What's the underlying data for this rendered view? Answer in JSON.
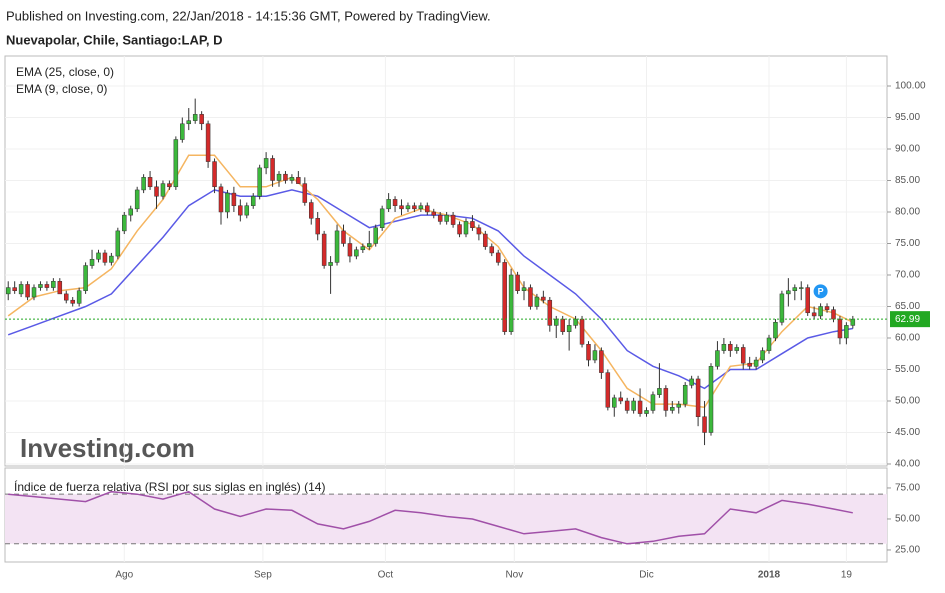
{
  "header": {
    "published": "Published on Investing.com, 22/Jan/2018 - 14:15:36 GMT, Powered by TradingView.",
    "symbol": "Nuevapolar, Chile, Santiago:LAP, D",
    "watermark": "Investing.com"
  },
  "chart_data": [
    {
      "type": "candlestick",
      "up_color": "#3cb83c",
      "down_color": "#d42a2a",
      "xlim": [
        -0.5,
        136.3
      ],
      "ylim": [
        39.68,
        104.76
      ],
      "xticks": [
        {
          "value": 18,
          "label": "Ago"
        },
        {
          "value": 39.5,
          "label": "Sep"
        },
        {
          "value": 58.5,
          "label": "Oct"
        },
        {
          "value": 78.5,
          "label": "Nov"
        },
        {
          "value": 99,
          "label": "Dic"
        },
        {
          "value": 118,
          "label": "2018"
        },
        {
          "value": 130,
          "label": "19"
        }
      ],
      "yticks": [
        {
          "value": 100,
          "label": "100.00"
        },
        {
          "value": 95,
          "label": "95.00"
        },
        {
          "value": 90,
          "label": "90.00"
        },
        {
          "value": 85,
          "label": "85.00"
        },
        {
          "value": 80,
          "label": "80.00"
        },
        {
          "value": 75,
          "label": "75.00"
        },
        {
          "value": 70,
          "label": "70.00"
        },
        {
          "value": 65,
          "label": "65.00"
        },
        {
          "value": 60,
          "label": "60.00"
        },
        {
          "value": 55,
          "label": "55.00"
        },
        {
          "value": 50,
          "label": "50.00"
        },
        {
          "value": 45,
          "label": "45.00"
        },
        {
          "value": 40,
          "label": "40.00"
        }
      ],
      "grid": true,
      "last_price": 62.99,
      "last_price_color": "#22a822",
      "marker": "P",
      "candles": [
        [
          67,
          69,
          66,
          68
        ],
        [
          68,
          69,
          67,
          67.5
        ],
        [
          67,
          69,
          66.5,
          68.5
        ],
        [
          68.5,
          69,
          66,
          66.5
        ],
        [
          66.5,
          68.5,
          66,
          68
        ],
        [
          68,
          69,
          67.5,
          68.5
        ],
        [
          68.5,
          69,
          67.5,
          68
        ],
        [
          68,
          69.5,
          67.5,
          69
        ],
        [
          69,
          69.5,
          67,
          67
        ],
        [
          67,
          67.5,
          65.5,
          66
        ],
        [
          66,
          66.5,
          65,
          65.5
        ],
        [
          65.5,
          68,
          65,
          67.5
        ],
        [
          67.5,
          72,
          67,
          71.5
        ],
        [
          71.5,
          74,
          71,
          72.5
        ],
        [
          72.5,
          74,
          72,
          73.5
        ],
        [
          73.5,
          74,
          71.5,
          72
        ],
        [
          72,
          73.5,
          71.5,
          73
        ],
        [
          73,
          77.5,
          72.5,
          77
        ],
        [
          77,
          80,
          76.5,
          79.5
        ],
        [
          79.5,
          81,
          78.5,
          80.5
        ],
        [
          80.5,
          84,
          80,
          83.5
        ],
        [
          83.5,
          86,
          83,
          85.5
        ],
        [
          85.5,
          86.5,
          83.5,
          84
        ],
        [
          84,
          85,
          80.5,
          82.5
        ],
        [
          82.5,
          85,
          82,
          84.5
        ],
        [
          84.5,
          85,
          83.5,
          84
        ],
        [
          84,
          92,
          83.5,
          91.5
        ],
        [
          91.5,
          95,
          91,
          94
        ],
        [
          94,
          96.5,
          93,
          94.5
        ],
        [
          94.5,
          98,
          94,
          95.5
        ],
        [
          95.5,
          96,
          93,
          94
        ],
        [
          94,
          94.5,
          87,
          88
        ],
        [
          88,
          88.5,
          83,
          84
        ],
        [
          84,
          84.5,
          78,
          80
        ],
        [
          80,
          83.5,
          79,
          83
        ],
        [
          83,
          84,
          80,
          81
        ],
        [
          81,
          82,
          78.5,
          79.5
        ],
        [
          79.5,
          81.5,
          79,
          81
        ],
        [
          81,
          83,
          80.5,
          82.5
        ],
        [
          82.5,
          87.5,
          82,
          87
        ],
        [
          87,
          89.5,
          86,
          88.5
        ],
        [
          88.5,
          89,
          84,
          85
        ],
        [
          85,
          86.5,
          84,
          86
        ],
        [
          86,
          86.5,
          84.5,
          85
        ],
        [
          85,
          86,
          84.5,
          85.5
        ],
        [
          85.5,
          86.5,
          84.5,
          84.5
        ],
        [
          84.5,
          85.5,
          81,
          81.5
        ],
        [
          81.5,
          82,
          78,
          79
        ],
        [
          79,
          80,
          75.5,
          76.5
        ],
        [
          76.5,
          77,
          71,
          71.5
        ],
        [
          71.5,
          73,
          67,
          72
        ],
        [
          72,
          78,
          71.5,
          77
        ],
        [
          77,
          78,
          74.5,
          75
        ],
        [
          75,
          76,
          72,
          73
        ],
        [
          73,
          74.5,
          72.5,
          74
        ],
        [
          74,
          75,
          73.5,
          74.5
        ],
        [
          74.5,
          77,
          74,
          75
        ],
        [
          75,
          78,
          74.5,
          77.5
        ],
        [
          77.5,
          81,
          77,
          80.5
        ],
        [
          80.5,
          83,
          80,
          82
        ],
        [
          82,
          82.5,
          80,
          81
        ],
        [
          81,
          82,
          79.5,
          80.5
        ],
        [
          80.5,
          81.5,
          80,
          81
        ],
        [
          81,
          81.5,
          80,
          80.5
        ],
        [
          80.5,
          81.5,
          80,
          81
        ],
        [
          81,
          81.5,
          79.5,
          80
        ],
        [
          80,
          80.5,
          79,
          79.5
        ],
        [
          79.5,
          80,
          78,
          78.5
        ],
        [
          78.5,
          80,
          78,
          79.5
        ],
        [
          79.5,
          80,
          77.5,
          78
        ],
        [
          78,
          78.5,
          76,
          76.5
        ],
        [
          76.5,
          79,
          76,
          78.5
        ],
        [
          78.5,
          79.5,
          77,
          77.5
        ],
        [
          77.5,
          78,
          75.5,
          76.5
        ],
        [
          76.5,
          77,
          74,
          74.5
        ],
        [
          74.5,
          75,
          73,
          73.5
        ],
        [
          73.5,
          74,
          71.5,
          72
        ],
        [
          72,
          72.5,
          60.5,
          61
        ],
        [
          61,
          71,
          60.5,
          70
        ],
        [
          70,
          70.5,
          67,
          67.5
        ],
        [
          67.5,
          69,
          66,
          68
        ],
        [
          68,
          68.5,
          64.5,
          65
        ],
        [
          65,
          67,
          64.5,
          66.5
        ],
        [
          66.5,
          67.5,
          65.5,
          66
        ],
        [
          66,
          66.5,
          61,
          62
        ],
        [
          62,
          63.5,
          60,
          63
        ],
        [
          63,
          63.5,
          60.5,
          61
        ],
        [
          61,
          63,
          58,
          62
        ],
        [
          62,
          63.5,
          61.5,
          63
        ],
        [
          63,
          63.5,
          58.5,
          59
        ],
        [
          59,
          59.5,
          55.5,
          56.5
        ],
        [
          56.5,
          59,
          56,
          58
        ],
        [
          58,
          58.5,
          53.5,
          54.5
        ],
        [
          54.5,
          55,
          48.5,
          49
        ],
        [
          49,
          51,
          47.5,
          50.5
        ],
        [
          50.5,
          51.5,
          49.5,
          50
        ],
        [
          50,
          50.5,
          48,
          48.5
        ],
        [
          48.5,
          50.5,
          48,
          50
        ],
        [
          50,
          52,
          47.5,
          48
        ],
        [
          48,
          49,
          47.5,
          48.5
        ],
        [
          48.5,
          51.5,
          48,
          51
        ],
        [
          51,
          56,
          50.5,
          52
        ],
        [
          52,
          52.5,
          47.5,
          48.5
        ],
        [
          48.5,
          50,
          48,
          49
        ],
        [
          49,
          50,
          48,
          49.5
        ],
        [
          49.5,
          53,
          49,
          52.5
        ],
        [
          52.5,
          54,
          52,
          53.5
        ],
        [
          53.5,
          54,
          46,
          47.5
        ],
        [
          47.5,
          50,
          43,
          45
        ],
        [
          45,
          56,
          44.5,
          55.5
        ],
        [
          55.5,
          59.5,
          55,
          58
        ],
        [
          58,
          60,
          57.5,
          59
        ],
        [
          59,
          59.5,
          57,
          58
        ],
        [
          58,
          59,
          57.5,
          58.5
        ],
        [
          58.5,
          59,
          55,
          56
        ],
        [
          56,
          57,
          55,
          55.5
        ],
        [
          55.5,
          57,
          55,
          56.5
        ],
        [
          56.5,
          58.5,
          56,
          58
        ],
        [
          58,
          60.5,
          57.5,
          60
        ],
        [
          60,
          63,
          59.5,
          62.5
        ],
        [
          62.5,
          67.5,
          62,
          67
        ],
        [
          67,
          69.5,
          65,
          67.5
        ],
        [
          67.5,
          68.5,
          66,
          68
        ],
        [
          68,
          69,
          66,
          68
        ],
        [
          68,
          68.5,
          63.5,
          64
        ],
        [
          64,
          65,
          63,
          63.5
        ],
        [
          63.5,
          65.5,
          63,
          65
        ],
        [
          65,
          65.5,
          64,
          64.5
        ],
        [
          64.5,
          65,
          62.5,
          63
        ],
        [
          63,
          63.5,
          59,
          60
        ],
        [
          60,
          62.5,
          59,
          62
        ],
        [
          62,
          63.5,
          61.5,
          62.99
        ]
      ],
      "x": [
        0,
        4,
        8,
        12,
        16,
        20,
        24,
        28,
        32,
        36,
        40,
        44,
        48,
        52,
        56,
        60,
        64,
        68,
        72,
        76,
        80,
        84,
        88,
        92,
        96,
        100,
        104,
        108,
        112,
        116,
        120,
        124,
        128,
        131
      ],
      "series": [
        {
          "name": "EMA (25, close, 0)",
          "color": "#5a5ae6",
          "values": [
            60.5,
            62,
            63.5,
            65,
            67,
            71.5,
            76,
            81,
            83.5,
            82.5,
            82.5,
            83.5,
            82.5,
            80,
            77.5,
            78.5,
            79.5,
            79.5,
            79,
            77,
            73,
            70,
            67,
            63,
            58,
            55.5,
            54,
            52,
            55,
            55,
            57.5,
            60,
            61,
            61.5
          ]
        },
        {
          "name": "EMA (9, close, 0)",
          "color": "#f5b560",
          "values": [
            63.5,
            66.5,
            67.5,
            68,
            71,
            77,
            82,
            89,
            89,
            84,
            84,
            85.5,
            82,
            77,
            74,
            79,
            80.5,
            79.5,
            78,
            74.5,
            68,
            65,
            63,
            58,
            52,
            49.5,
            49.5,
            49,
            55.5,
            56,
            61,
            65,
            64,
            62.5
          ]
        }
      ]
    },
    {
      "type": "line",
      "title": "Índice de fuerza relativa (RSI por sus siglas en inglés) (14)",
      "xlim": [
        -0.5,
        136.3
      ],
      "ylim": [
        15.3,
        91.1
      ],
      "yticks": [
        {
          "value": 75,
          "label": "75.00"
        },
        {
          "value": 50,
          "label": "50.00"
        },
        {
          "value": 25,
          "label": "25.00"
        }
      ],
      "bands": [
        30,
        70
      ],
      "band_color": "#f3e3f3",
      "x": [
        0,
        4,
        8,
        12,
        16,
        20,
        24,
        28,
        32,
        36,
        40,
        44,
        48,
        52,
        56,
        60,
        64,
        68,
        72,
        76,
        80,
        84,
        88,
        92,
        96,
        100,
        104,
        108,
        112,
        116,
        120,
        124,
        128,
        131
      ],
      "series": [
        {
          "color": "#a050a8",
          "values": [
            70,
            68,
            66,
            64,
            72,
            70,
            66,
            72,
            58,
            52,
            58,
            57,
            46,
            42,
            48,
            57,
            55,
            52,
            50,
            44,
            38,
            40,
            42,
            35,
            30,
            32,
            36,
            38,
            58,
            55,
            65,
            62,
            58,
            55
          ]
        }
      ]
    }
  ]
}
